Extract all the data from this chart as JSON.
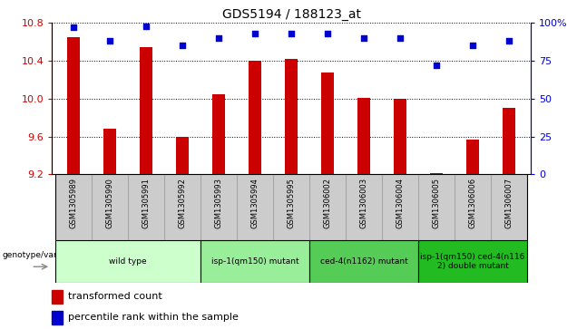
{
  "title": "GDS5194 / 188123_at",
  "samples": [
    "GSM1305989",
    "GSM1305990",
    "GSM1305991",
    "GSM1305992",
    "GSM1305993",
    "GSM1305994",
    "GSM1305995",
    "GSM1306002",
    "GSM1306003",
    "GSM1306004",
    "GSM1306005",
    "GSM1306006",
    "GSM1306007"
  ],
  "red_values": [
    10.65,
    9.68,
    10.55,
    9.6,
    10.05,
    10.4,
    10.42,
    10.28,
    10.01,
    10.0,
    9.21,
    9.57,
    9.9
  ],
  "blue_values": [
    97,
    88,
    98,
    85,
    90,
    93,
    93,
    93,
    90,
    90,
    72,
    85,
    88
  ],
  "ylim_left": [
    9.2,
    10.8
  ],
  "ylim_right": [
    0,
    100
  ],
  "yticks_left": [
    9.2,
    9.6,
    10.0,
    10.4,
    10.8
  ],
  "yticks_right": [
    0,
    25,
    50,
    75,
    100
  ],
  "ytick_labels_right": [
    "0",
    "25",
    "50",
    "75",
    "100%"
  ],
  "groups": [
    {
      "label": "wild type",
      "start": 0,
      "end": 3,
      "color": "#ccffcc"
    },
    {
      "label": "isp-1(qm150) mutant",
      "start": 4,
      "end": 6,
      "color": "#99ee99"
    },
    {
      "label": "ced-4(n1162) mutant",
      "start": 7,
      "end": 9,
      "color": "#55cc55"
    },
    {
      "label": "isp-1(qm150) ced-4(n116\n2) double mutant",
      "start": 10,
      "end": 12,
      "color": "#22bb22"
    }
  ],
  "red_color": "#cc0000",
  "blue_color": "#0000cc",
  "bar_width": 0.35,
  "cell_color": "#cccccc",
  "cell_edge_color": "#999999"
}
